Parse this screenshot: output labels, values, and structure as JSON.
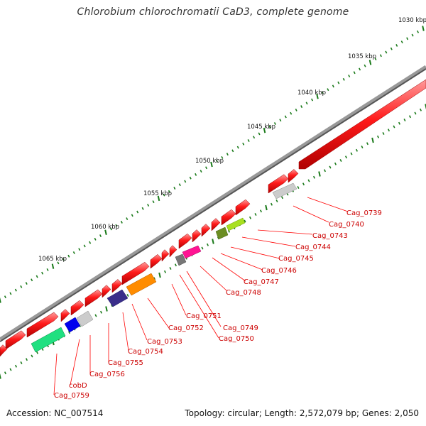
{
  "title": "Chlorobium chlorochromatii CaD3, complete genome",
  "footer": {
    "accession": "Accession: NC_007514",
    "stats": "Topology: circular; Length: 2,572,079 bp; Genes: 2,050"
  },
  "kbp_labels": [
    "1030 kbp",
    "1035 kbp",
    "1040 kbp",
    "1045 kbp",
    "1050 kbp",
    "1055 kbp",
    "1060 kbp",
    "1065 kbp"
  ],
  "gene_labels": [
    "Cag_0739",
    "Cag_0740",
    "Cag_0743",
    "Cag_0744",
    "Cag_0745",
    "Cag_0746",
    "Cag_0747",
    "Cag_0748",
    "Cag_0749",
    "Cag_0750",
    "Cag_0751",
    "Cag_0752",
    "Cag_0753",
    "Cag_0754",
    "Cag_0755",
    "Cag_0756",
    "cobD",
    "Cag_0759"
  ],
  "colors": {
    "default_gene": "#ff0000",
    "backbone": "#808080",
    "tick": "#1a7a1a",
    "label_line": "#ff0000"
  }
}
